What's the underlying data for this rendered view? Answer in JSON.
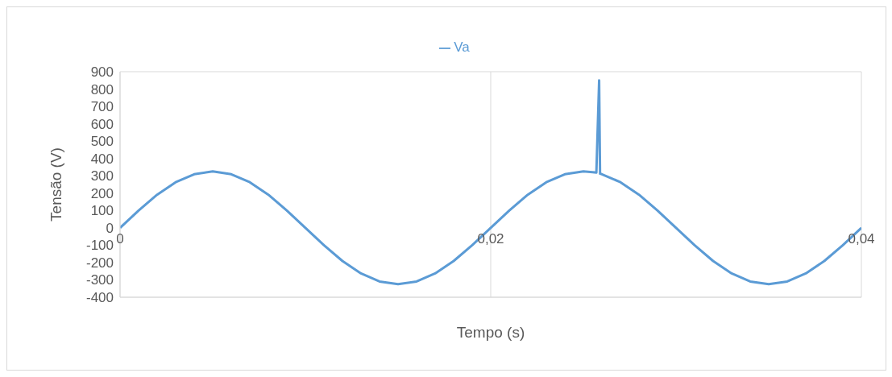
{
  "chart_data": {
    "type": "line",
    "xlabel": "Tempo (s)",
    "ylabel": "Tensão (V)",
    "x": [
      0,
      0.001,
      0.002,
      0.003,
      0.004,
      0.005,
      0.006,
      0.007,
      0.008,
      0.009,
      0.01,
      0.011,
      0.012,
      0.013,
      0.014,
      0.015,
      0.016,
      0.017,
      0.018,
      0.019,
      0.02,
      0.021,
      0.022,
      0.023,
      0.024,
      0.025,
      0.0255,
      0.0257,
      0.02585,
      0.0259,
      0.026,
      0.027,
      0.028,
      0.029,
      0.03,
      0.031,
      0.032,
      0.033,
      0.034,
      0.035,
      0.036,
      0.037,
      0.038,
      0.039,
      0.04
    ],
    "series": [
      {
        "name": "Va",
        "color": "#5b9bd5",
        "values": [
          0,
          100,
          191,
          263,
          309,
          325,
          309,
          263,
          191,
          100,
          0,
          -100,
          -191,
          -263,
          -309,
          -325,
          -309,
          -263,
          -191,
          -100,
          0,
          100,
          191,
          263,
          309,
          325,
          321,
          318,
          850,
          312,
          309,
          263,
          191,
          100,
          0,
          -100,
          -191,
          -263,
          -309,
          -325,
          -309,
          -263,
          -191,
          -100,
          0
        ]
      }
    ],
    "xlim": [
      0,
      0.04
    ],
    "xticks": [
      {
        "value": 0,
        "label": "0"
      },
      {
        "value": 0.02,
        "label": "0,02"
      },
      {
        "value": 0.04,
        "label": "0,04"
      }
    ],
    "ylim": [
      -400,
      900
    ],
    "yticks": [
      -400,
      -300,
      -200,
      -100,
      0,
      100,
      200,
      300,
      400,
      500,
      600,
      700,
      800,
      900
    ],
    "grid": true,
    "legend": "top",
    "marker": "none",
    "line_style": "solid"
  }
}
